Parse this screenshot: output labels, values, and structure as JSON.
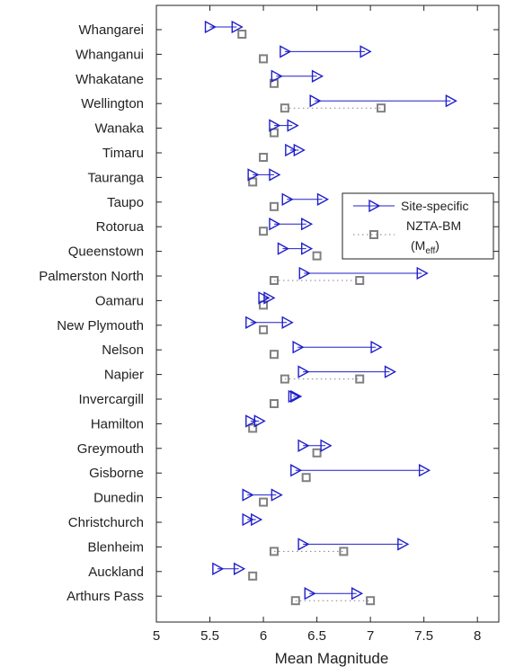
{
  "chart_data": {
    "type": "scatter",
    "title": "",
    "xlabel": "Mean Magnitude",
    "ylabel": "",
    "xlim": [
      5,
      8.2
    ],
    "xticks": [
      5,
      5.5,
      6,
      6.5,
      7,
      7.5,
      8
    ],
    "grid": false,
    "legend_position": "right",
    "legend": {
      "site_specific": "Site-specific",
      "nzta_line1": "NZTA-BM",
      "nzta_line2_prefix": "(M",
      "nzta_line2_sub": "eff",
      "nzta_line2_suffix": ")"
    },
    "colors": {
      "site_specific": "#1f1fcc",
      "nzta": "#808080"
    },
    "categories": [
      "Whangarei",
      "Whanganui",
      "Whakatane",
      "Wellington",
      "Wanaka",
      "Timaru",
      "Tauranga",
      "Taupo",
      "Rotorua",
      "Queenstown",
      "Palmerston North",
      "Oamaru",
      "New Plymouth",
      "Nelson",
      "Napier",
      "Invercargill",
      "Hamilton",
      "Greymouth",
      "Gisborne",
      "Dunedin",
      "Christchurch",
      "Blenheim",
      "Auckland",
      "Arthurs Pass"
    ],
    "series": [
      {
        "name": "Site-specific",
        "marker": "triangle-right",
        "start": [
          5.5,
          6.2,
          6.12,
          6.48,
          6.1,
          6.25,
          5.9,
          6.22,
          6.1,
          6.18,
          6.38,
          6.0,
          5.88,
          6.32,
          6.37,
          6.28,
          5.88,
          6.37,
          6.3,
          5.85,
          5.85,
          6.37,
          5.57,
          6.43
        ],
        "end": [
          5.75,
          6.95,
          6.5,
          7.75,
          6.27,
          6.33,
          6.1,
          6.55,
          6.4,
          6.4,
          7.48,
          6.05,
          6.22,
          7.05,
          7.18,
          6.3,
          5.96,
          6.58,
          7.5,
          6.12,
          5.93,
          7.3,
          5.77,
          6.87
        ]
      },
      {
        "name": "NZTA-BM (Meff)",
        "marker": "square",
        "start": [
          5.8,
          6.0,
          6.1,
          6.2,
          6.1,
          6.0,
          5.9,
          6.1,
          6.0,
          6.5,
          6.1,
          6.0,
          6.0,
          6.1,
          6.2,
          6.1,
          5.9,
          6.5,
          6.4,
          6.0,
          null,
          6.1,
          5.9,
          6.3
        ],
        "end": [
          5.8,
          6.0,
          6.1,
          7.1,
          6.1,
          6.0,
          5.9,
          6.1,
          6.0,
          6.5,
          6.9,
          6.0,
          6.0,
          6.1,
          6.9,
          6.1,
          5.9,
          6.5,
          6.4,
          6.0,
          null,
          6.75,
          5.9,
          7.0
        ]
      }
    ]
  }
}
